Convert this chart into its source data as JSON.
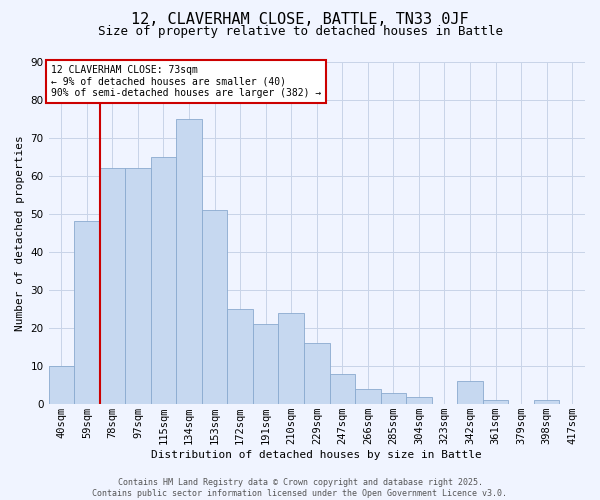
{
  "title": "12, CLAVERHAM CLOSE, BATTLE, TN33 0JF",
  "subtitle": "Size of property relative to detached houses in Battle",
  "xlabel": "Distribution of detached houses by size in Battle",
  "ylabel": "Number of detached properties",
  "bin_labels": [
    "40sqm",
    "59sqm",
    "78sqm",
    "97sqm",
    "115sqm",
    "134sqm",
    "153sqm",
    "172sqm",
    "191sqm",
    "210sqm",
    "229sqm",
    "247sqm",
    "266sqm",
    "285sqm",
    "304sqm",
    "323sqm",
    "342sqm",
    "361sqm",
    "379sqm",
    "398sqm",
    "417sqm"
  ],
  "bar_heights": [
    10,
    48,
    62,
    62,
    65,
    75,
    51,
    25,
    21,
    24,
    16,
    8,
    4,
    3,
    2,
    0,
    6,
    1,
    0,
    1,
    0
  ],
  "bar_color": "#c6d8f0",
  "bar_edge_color": "#8aaacf",
  "vline_index": 2,
  "vline_color": "#cc0000",
  "ylim": [
    0,
    90
  ],
  "yticks": [
    0,
    10,
    20,
    30,
    40,
    50,
    60,
    70,
    80,
    90
  ],
  "annotation_line1": "12 CLAVERHAM CLOSE: 73sqm",
  "annotation_line2": "← 9% of detached houses are smaller (40)",
  "annotation_line3": "90% of semi-detached houses are larger (382) →",
  "annotation_box_color": "#ffffff",
  "annotation_box_edge": "#cc0000",
  "footer_line1": "Contains HM Land Registry data © Crown copyright and database right 2025.",
  "footer_line2": "Contains public sector information licensed under the Open Government Licence v3.0.",
  "background_color": "#f0f4ff",
  "grid_color": "#c8d4e8",
  "title_fontsize": 11,
  "subtitle_fontsize": 9,
  "axis_label_fontsize": 8,
  "tick_fontsize": 7.5,
  "footer_fontsize": 6
}
